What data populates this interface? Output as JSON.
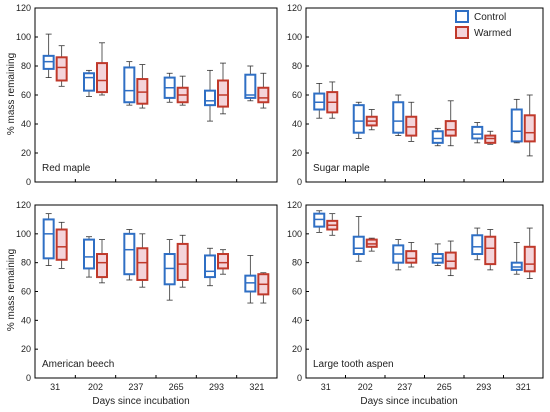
{
  "colors": {
    "control": "#2f6fc4",
    "warmed": "#c0392b",
    "warmed_fill": "#f4d4da",
    "axis": "#000000"
  },
  "legend": {
    "items": [
      {
        "label": "Control",
        "series": "control"
      },
      {
        "label": "Warmed",
        "series": "warmed"
      }
    ]
  },
  "xlabel": "Days since incubation",
  "ylabel": "% mass remaining",
  "chart_data": [
    {
      "type": "box",
      "panel": "Red maple",
      "categories": [
        "31",
        "202",
        "237",
        "265",
        "293",
        "321"
      ],
      "ylim": [
        0,
        120
      ],
      "yticks": [
        0,
        20,
        40,
        60,
        80,
        100,
        120
      ],
      "ylabel": "% mass remaining",
      "xlabel": "",
      "series": [
        {
          "name": "Control",
          "key": "control",
          "boxes": [
            {
              "min": 72,
              "q1": 78,
              "median": 83,
              "q3": 87,
              "max": 102
            },
            {
              "min": 59,
              "q1": 63,
              "median": 72,
              "q3": 75,
              "max": 77
            },
            {
              "min": 53,
              "q1": 55,
              "median": 63,
              "q3": 79,
              "max": 83
            },
            {
              "min": 55,
              "q1": 58,
              "median": 65,
              "q3": 72,
              "max": 75
            },
            {
              "min": 42,
              "q1": 53,
              "median": 56,
              "q3": 63,
              "max": 77
            },
            {
              "min": 56,
              "q1": 58,
              "median": 60,
              "q3": 74,
              "max": 80
            }
          ]
        },
        {
          "name": "Warmed",
          "key": "warmed",
          "boxes": [
            {
              "min": 66,
              "q1": 70,
              "median": 79,
              "q3": 86,
              "max": 94
            },
            {
              "min": 60,
              "q1": 62,
              "median": 70,
              "q3": 82,
              "max": 96
            },
            {
              "min": 51,
              "q1": 54,
              "median": 62,
              "q3": 71,
              "max": 81
            },
            {
              "min": 53,
              "q1": 55,
              "median": 60,
              "q3": 65,
              "max": 73
            },
            {
              "min": 47,
              "q1": 52,
              "median": 60,
              "q3": 70,
              "max": 82
            },
            {
              "min": 51,
              "q1": 55,
              "median": 58,
              "q3": 65,
              "max": 75
            }
          ]
        }
      ]
    },
    {
      "type": "box",
      "panel": "Sugar maple",
      "categories": [
        "31",
        "202",
        "237",
        "265",
        "293",
        "321"
      ],
      "ylim": [
        0,
        120
      ],
      "yticks": [
        0,
        20,
        40,
        60,
        80,
        100,
        120
      ],
      "ylabel": "",
      "xlabel": "",
      "series": [
        {
          "name": "Control",
          "key": "control",
          "boxes": [
            {
              "min": 44,
              "q1": 50,
              "median": 55,
              "q3": 61,
              "max": 68
            },
            {
              "min": 30,
              "q1": 34,
              "median": 42,
              "q3": 53,
              "max": 55
            },
            {
              "min": 32,
              "q1": 34,
              "median": 42,
              "q3": 55,
              "max": 60
            },
            {
              "min": 25,
              "q1": 27,
              "median": 30,
              "q3": 35,
              "max": 37
            },
            {
              "min": 27,
              "q1": 30,
              "median": 33,
              "q3": 38,
              "max": 41
            },
            {
              "min": 27,
              "q1": 28,
              "median": 35,
              "q3": 50,
              "max": 57
            }
          ]
        },
        {
          "name": "Warmed",
          "key": "warmed",
          "boxes": [
            {
              "min": 44,
              "q1": 48,
              "median": 55,
              "q3": 62,
              "max": 69
            },
            {
              "min": 36,
              "q1": 39,
              "median": 42,
              "q3": 45,
              "max": 50
            },
            {
              "min": 28,
              "q1": 32,
              "median": 38,
              "q3": 45,
              "max": 55
            },
            {
              "min": 25,
              "q1": 32,
              "median": 36,
              "q3": 42,
              "max": 56
            },
            {
              "min": 26,
              "q1": 27,
              "median": 30,
              "q3": 32,
              "max": 35
            },
            {
              "min": 18,
              "q1": 28,
              "median": 34,
              "q3": 46,
              "max": 60
            }
          ]
        }
      ]
    },
    {
      "type": "box",
      "panel": "American beech",
      "categories": [
        "31",
        "202",
        "237",
        "265",
        "293",
        "321"
      ],
      "ylim": [
        0,
        120
      ],
      "yticks": [
        0,
        20,
        40,
        60,
        80,
        100,
        120
      ],
      "ylabel": "% mass remaining",
      "xlabel": "Days since incubation",
      "series": [
        {
          "name": "Control",
          "key": "control",
          "boxes": [
            {
              "min": 78,
              "q1": 83,
              "median": 100,
              "q3": 110,
              "max": 114
            },
            {
              "min": 70,
              "q1": 76,
              "median": 84,
              "q3": 96,
              "max": 98
            },
            {
              "min": 68,
              "q1": 72,
              "median": 89,
              "q3": 100,
              "max": 103
            },
            {
              "min": 54,
              "q1": 65,
              "median": 76,
              "q3": 86,
              "max": 96
            },
            {
              "min": 64,
              "q1": 70,
              "median": 74,
              "q3": 85,
              "max": 90
            },
            {
              "min": 52,
              "q1": 60,
              "median": 66,
              "q3": 71,
              "max": 85
            }
          ]
        },
        {
          "name": "Warmed",
          "key": "warmed",
          "boxes": [
            {
              "min": 76,
              "q1": 82,
              "median": 91,
              "q3": 103,
              "max": 108
            },
            {
              "min": 66,
              "q1": 70,
              "median": 80,
              "q3": 86,
              "max": 96
            },
            {
              "min": 63,
              "q1": 68,
              "median": 80,
              "q3": 90,
              "max": 100
            },
            {
              "min": 63,
              "q1": 68,
              "median": 79,
              "q3": 93,
              "max": 99
            },
            {
              "min": 72,
              "q1": 76,
              "median": 80,
              "q3": 86,
              "max": 89
            },
            {
              "min": 52,
              "q1": 58,
              "median": 65,
              "q3": 72,
              "max": 73
            }
          ]
        }
      ]
    },
    {
      "type": "box",
      "panel": "Large tooth aspen",
      "categories": [
        "31",
        "202",
        "237",
        "265",
        "293",
        "321"
      ],
      "ylim": [
        0,
        120
      ],
      "yticks": [
        0,
        20,
        40,
        60,
        80,
        100,
        120
      ],
      "ylabel": "",
      "xlabel": "Days since incubation",
      "series": [
        {
          "name": "Control",
          "key": "control",
          "boxes": [
            {
              "min": 101,
              "q1": 105,
              "median": 110,
              "q3": 114,
              "max": 116
            },
            {
              "min": 81,
              "q1": 86,
              "median": 90,
              "q3": 98,
              "max": 112
            },
            {
              "min": 75,
              "q1": 80,
              "median": 86,
              "q3": 92,
              "max": 96
            },
            {
              "min": 78,
              "q1": 80,
              "median": 83,
              "q3": 86,
              "max": 93
            },
            {
              "min": 82,
              "q1": 86,
              "median": 91,
              "q3": 99,
              "max": 104
            },
            {
              "min": 72,
              "q1": 75,
              "median": 77,
              "q3": 80,
              "max": 94
            }
          ]
        },
        {
          "name": "Warmed",
          "key": "warmed",
          "boxes": [
            {
              "min": 99,
              "q1": 103,
              "median": 106,
              "q3": 109,
              "max": 114
            },
            {
              "min": 88,
              "q1": 91,
              "median": 93,
              "q3": 96,
              "max": 97
            },
            {
              "min": 77,
              "q1": 80,
              "median": 83,
              "q3": 88,
              "max": 94
            },
            {
              "min": 71,
              "q1": 76,
              "median": 81,
              "q3": 87,
              "max": 95
            },
            {
              "min": 75,
              "q1": 79,
              "median": 90,
              "q3": 98,
              "max": 103
            },
            {
              "min": 69,
              "q1": 74,
              "median": 79,
              "q3": 91,
              "max": 104
            }
          ]
        }
      ]
    }
  ]
}
